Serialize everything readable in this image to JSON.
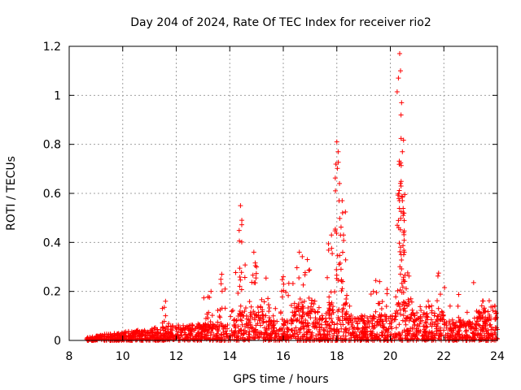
{
  "chart_data": {
    "type": "scatter",
    "title": "Day 204 of 2024, Rate Of TEC Index for receiver rio2",
    "xlabel": "GPS time / hours",
    "ylabel": "ROTI / TECUs",
    "xlim": [
      8,
      24
    ],
    "ylim": [
      0,
      1.2
    ],
    "xticks": [
      "8",
      "10",
      "12",
      "14",
      "16",
      "18",
      "20",
      "22",
      "24"
    ],
    "yticks": [
      "0",
      "0.2",
      "0.4",
      "0.6",
      "0.8",
      "1",
      "1.2"
    ],
    "grid": true,
    "marker": "plus",
    "color": "#ff0000",
    "series": [
      {
        "name": "ROTI",
        "peaks": [
          {
            "x": 11.6,
            "y": 0.16
          },
          {
            "x": 13.3,
            "y": 0.2
          },
          {
            "x": 13.7,
            "y": 0.27
          },
          {
            "x": 14.4,
            "y": 0.55
          },
          {
            "x": 14.45,
            "y": 0.49
          },
          {
            "x": 14.9,
            "y": 0.36
          },
          {
            "x": 15.0,
            "y": 0.3
          },
          {
            "x": 16.0,
            "y": 0.26
          },
          {
            "x": 16.6,
            "y": 0.36
          },
          {
            "x": 16.9,
            "y": 0.33
          },
          {
            "x": 17.8,
            "y": 0.43
          },
          {
            "x": 18.0,
            "y": 0.81
          },
          {
            "x": 18.05,
            "y": 0.77
          },
          {
            "x": 18.1,
            "y": 0.64
          },
          {
            "x": 18.2,
            "y": 0.57
          },
          {
            "x": 18.25,
            "y": 0.43
          },
          {
            "x": 19.6,
            "y": 0.24
          },
          {
            "x": 20.35,
            "y": 1.17
          },
          {
            "x": 20.38,
            "y": 1.1
          },
          {
            "x": 20.42,
            "y": 0.97
          },
          {
            "x": 20.4,
            "y": 0.92
          },
          {
            "x": 20.45,
            "y": 0.77
          },
          {
            "x": 20.4,
            "y": 0.63
          },
          {
            "x": 20.45,
            "y": 0.57
          },
          {
            "x": 20.48,
            "y": 0.52
          },
          {
            "x": 20.5,
            "y": 0.44
          },
          {
            "x": 20.5,
            "y": 0.35
          },
          {
            "x": 21.8,
            "y": 0.13
          },
          {
            "x": 23.9,
            "y": 0.14
          }
        ]
      }
    ]
  }
}
